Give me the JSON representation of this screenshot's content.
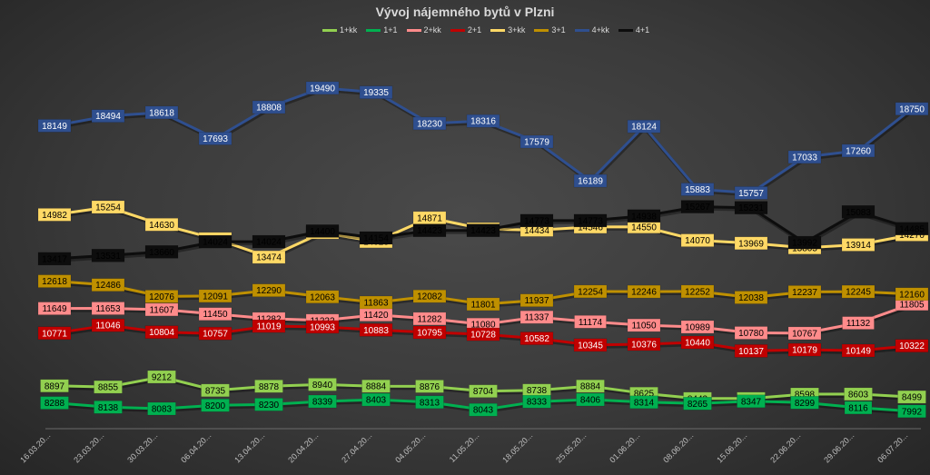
{
  "chart_data": {
    "type": "line",
    "title": "Vývoj nájemného  bytů v Plzni",
    "legend_position": "top",
    "grid": false,
    "ylim": [
      7500,
      20100
    ],
    "categories": [
      "16.03.20...",
      "23.03.20...",
      "30.03.20...",
      "06.04.20...",
      "13.04.20...",
      "20.04.20...",
      "27.04.20...",
      "04.05.20...",
      "11.05.20...",
      "18.05.20...",
      "25.05.20...",
      "01.06.20...",
      "08.06.20...",
      "15.06.20...",
      "22.06.20...",
      "29.06.20...",
      "06.07.20..."
    ],
    "series": [
      {
        "name": "1+kk",
        "color": "#92d050",
        "label_text": "#000000",
        "values": [
          8897,
          8855,
          9212,
          8735,
          8878,
          8940,
          8884,
          8876,
          8704,
          8738,
          8884,
          8625,
          8443,
          8442,
          8598,
          8603,
          8499
        ]
      },
      {
        "name": "1+1",
        "color": "#00b050",
        "label_text": "#000000",
        "values": [
          8288,
          8138,
          8083,
          8200,
          8230,
          8339,
          8403,
          8313,
          8043,
          8333,
          8406,
          8314,
          8265,
          8347,
          8299,
          8116,
          7992
        ]
      },
      {
        "name": "2+kk",
        "color": "#ff8b8b",
        "label_text": "#000000",
        "values": [
          11649,
          11653,
          11607,
          11450,
          11282,
          11222,
          11420,
          11282,
          11080,
          11337,
          11174,
          11050,
          10989,
          10780,
          10767,
          11132,
          11805
        ]
      },
      {
        "name": "2+1",
        "color": "#c00000",
        "label_text": "#ffffff",
        "values": [
          10771,
          11046,
          10804,
          10757,
          11019,
          10993,
          10883,
          10795,
          10728,
          10582,
          10345,
          10376,
          10440,
          10137,
          10179,
          10149,
          10322
        ]
      },
      {
        "name": "3+kk",
        "color": "#ffd966",
        "label_text": "#000000",
        "values": [
          14982,
          15254,
          14630,
          14125,
          13474,
          14346,
          14028,
          14871,
          14475,
          14434,
          14546,
          14550,
          14070,
          13969,
          13805,
          13914,
          14270
        ]
      },
      {
        "name": "3+1",
        "color": "#bf9000",
        "label_text": "#000000",
        "values": [
          12618,
          12486,
          12076,
          12091,
          12290,
          12063,
          11863,
          12082,
          11801,
          11937,
          12254,
          12246,
          12252,
          12038,
          12237,
          12245,
          12160
        ]
      },
      {
        "name": "4+kk",
        "color": "#2f4f8f",
        "label_text": "#ffffff",
        "values": [
          18149,
          18494,
          18618,
          17693,
          18808,
          19490,
          19335,
          18230,
          18316,
          17579,
          16189,
          18124,
          15883,
          15757,
          17033,
          17260,
          18750
        ]
      },
      {
        "name": "4+1",
        "color": "#0d0d0d",
        "label_text": "#000000",
        "values": [
          13417,
          13531,
          13660,
          14024,
          14024,
          14400,
          14154,
          14423,
          14423,
          14773,
          14773,
          14938,
          15267,
          15231,
          13992,
          15083,
          14485
        ]
      }
    ]
  }
}
